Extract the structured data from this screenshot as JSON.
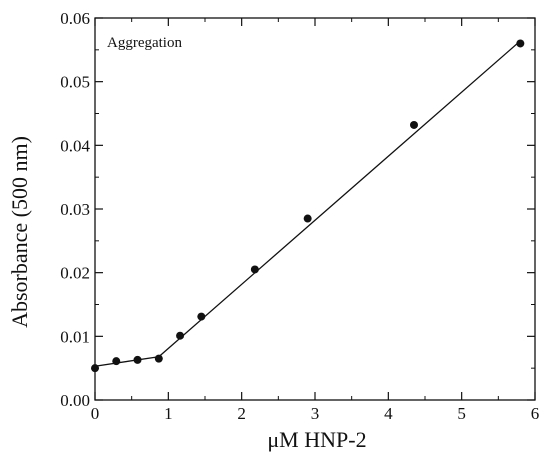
{
  "chart_data": {
    "type": "scatter",
    "annotation": "Aggregation",
    "xlabel": "μM  HNP-2",
    "ylabel": "Absorbance (500 nm)",
    "xlim": [
      0,
      6
    ],
    "ylim": [
      0,
      0.06
    ],
    "x_ticks": [
      0,
      1,
      2,
      3,
      4,
      5,
      6
    ],
    "x_tick_labels": [
      "0",
      "1",
      "2",
      "3",
      "4",
      "5",
      "6"
    ],
    "y_ticks": [
      0,
      0.01,
      0.02,
      0.03,
      0.04,
      0.05,
      0.06
    ],
    "y_tick_labels": [
      "0.00",
      "0.01",
      "0.02",
      "0.03",
      "0.04",
      "0.05",
      "0.06"
    ],
    "grid": false,
    "points": [
      {
        "x": 0.0,
        "y": 0.005
      },
      {
        "x": 0.29,
        "y": 0.0061
      },
      {
        "x": 0.58,
        "y": 0.0063
      },
      {
        "x": 0.87,
        "y": 0.0065
      },
      {
        "x": 1.16,
        "y": 0.0101
      },
      {
        "x": 1.45,
        "y": 0.0131
      },
      {
        "x": 2.18,
        "y": 0.0205
      },
      {
        "x": 2.9,
        "y": 0.0285
      },
      {
        "x": 4.35,
        "y": 0.0432
      },
      {
        "x": 5.8,
        "y": 0.056
      }
    ],
    "fit_lines": [
      {
        "x": [
          0.0,
          0.87
        ],
        "y": [
          0.0053,
          0.0068
        ]
      },
      {
        "x": [
          0.87,
          5.8
        ],
        "y": [
          0.0068,
          0.0564
        ]
      }
    ],
    "colors": {
      "marker": "#111111",
      "line": "#111111",
      "axis": "#111111"
    }
  }
}
